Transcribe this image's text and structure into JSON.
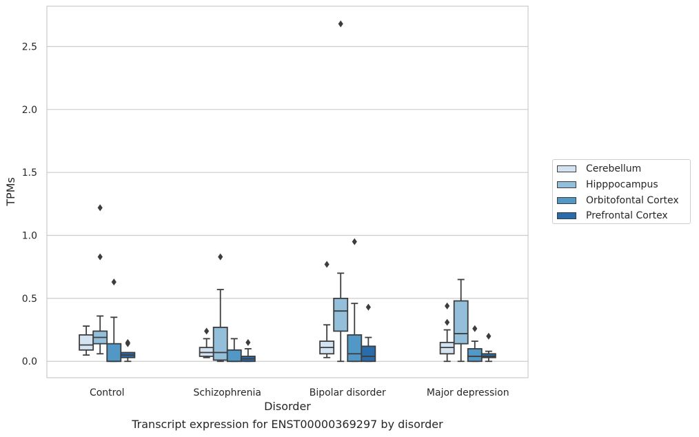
{
  "chart_data": {
    "type": "boxplot",
    "title": "",
    "xlabel": "Disorder",
    "ylabel": "TPMs",
    "caption": "Transcript expression for ENST00000369297 by disorder",
    "ylim": [
      -0.13,
      2.82
    ],
    "yticks": [
      "0.0",
      "0.5",
      "1.0",
      "1.5",
      "2.0",
      "2.5"
    ],
    "grid": "horizontal",
    "legend_position": "right",
    "categories": [
      "Control",
      "Schizophrenia",
      "Bipolar disorder",
      "Major depression"
    ],
    "series": [
      {
        "name": "Cerebellum",
        "color": "#d4e3f2",
        "boxes": [
          {
            "min": 0.05,
            "q1": 0.09,
            "median": 0.13,
            "q3": 0.21,
            "max": 0.28,
            "outliers": []
          },
          {
            "min": 0.03,
            "q1": 0.04,
            "median": 0.07,
            "q3": 0.11,
            "max": 0.18,
            "outliers": [
              0.24
            ]
          },
          {
            "min": 0.03,
            "q1": 0.06,
            "median": 0.11,
            "q3": 0.16,
            "max": 0.29,
            "outliers": [
              0.77
            ]
          },
          {
            "min": 0.0,
            "q1": 0.06,
            "median": 0.11,
            "q3": 0.15,
            "max": 0.25,
            "outliers": [
              0.31,
              0.44
            ]
          }
        ]
      },
      {
        "name": "Hipppocampus",
        "color": "#93bfda",
        "boxes": [
          {
            "min": 0.06,
            "q1": 0.14,
            "median": 0.19,
            "q3": 0.24,
            "max": 0.36,
            "outliers": [
              0.83,
              1.22
            ]
          },
          {
            "min": 0.0,
            "q1": 0.01,
            "median": 0.07,
            "q3": 0.27,
            "max": 0.57,
            "outliers": [
              0.83
            ]
          },
          {
            "min": 0.0,
            "q1": 0.24,
            "median": 0.4,
            "q3": 0.5,
            "max": 0.7,
            "outliers": [
              2.68
            ]
          },
          {
            "min": 0.0,
            "q1": 0.14,
            "median": 0.22,
            "q3": 0.48,
            "max": 0.65,
            "outliers": []
          }
        ]
      },
      {
        "name": "Orbitofontal Cortex",
        "color": "#5198c6",
        "boxes": [
          {
            "min": 0.0,
            "q1": 0.0,
            "median": 0.0,
            "q3": 0.14,
            "max": 0.35,
            "outliers": [
              0.63
            ]
          },
          {
            "min": 0.0,
            "q1": 0.0,
            "median": 0.0,
            "q3": 0.09,
            "max": 0.18,
            "outliers": []
          },
          {
            "min": 0.0,
            "q1": 0.0,
            "median": 0.06,
            "q3": 0.21,
            "max": 0.46,
            "outliers": [
              0.95
            ]
          },
          {
            "min": 0.0,
            "q1": 0.0,
            "median": 0.04,
            "q3": 0.1,
            "max": 0.16,
            "outliers": [
              0.26
            ]
          }
        ]
      },
      {
        "name": "Prefrontal Cortex",
        "color": "#2a6bab",
        "boxes": [
          {
            "min": 0.0,
            "q1": 0.03,
            "median": 0.05,
            "q3": 0.07,
            "max": 0.07,
            "outliers": [
              0.14,
              0.15
            ]
          },
          {
            "min": 0.0,
            "q1": 0.0,
            "median": 0.02,
            "q3": 0.04,
            "max": 0.1,
            "outliers": [
              0.15
            ]
          },
          {
            "min": 0.0,
            "q1": 0.0,
            "median": 0.04,
            "q3": 0.12,
            "max": 0.19,
            "outliers": [
              0.43
            ]
          },
          {
            "min": 0.0,
            "q1": 0.03,
            "median": 0.04,
            "q3": 0.06,
            "max": 0.08,
            "outliers": [
              0.2
            ]
          }
        ]
      }
    ]
  }
}
